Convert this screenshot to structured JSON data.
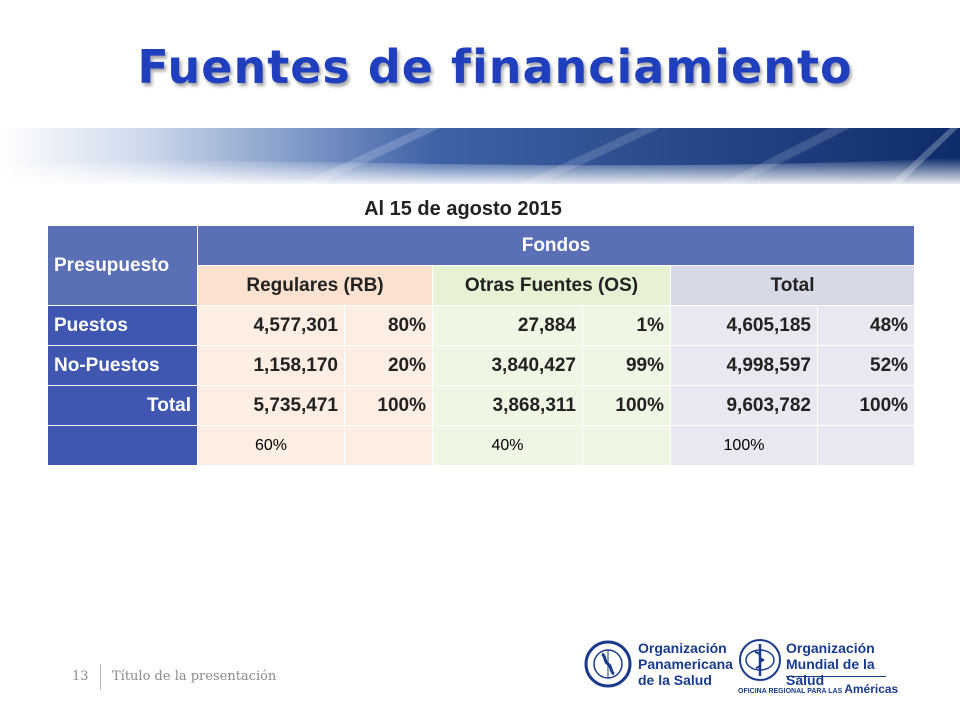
{
  "title": "Fuentes de financiamiento",
  "subtitle": "Al 15 de agosto 2015",
  "table": {
    "presupuesto": "Presupuesto",
    "fondos": "Fondos",
    "col_rb": "Regulares  (RB)",
    "col_os": "Otras Fuentes (OS)",
    "col_total": "Total",
    "rows": [
      {
        "label": "Puestos",
        "rb": "4,577,301",
        "rb_pct": "80%",
        "os": "27,884",
        "os_pct": "1%",
        "total": "4,605,185",
        "total_pct": "48%"
      },
      {
        "label": "No-Puestos",
        "rb": "1,158,170",
        "rb_pct": "20%",
        "os": "3,840,427",
        "os_pct": "99%",
        "total": "4,998,597",
        "total_pct": "52%"
      },
      {
        "label": "Total",
        "rb": "5,735,471",
        "rb_pct": "100%",
        "os": "3,868,311",
        "os_pct": "100%",
        "total": "9,603,782",
        "total_pct": "100%"
      }
    ],
    "share": {
      "rb": "60%",
      "os": "40%",
      "total": "100%"
    }
  },
  "footer": {
    "page_number": "13",
    "text": "Título de la presentación"
  },
  "logos": {
    "ops_line1": "Organización",
    "ops_line2": "Panamericana",
    "ops_line3": "de la Salud",
    "oms_line1": "Organización",
    "oms_line2": "Mundial de la Salud",
    "oms_small": "OFICINA REGIONAL PARA LAS",
    "oms_region": "Américas"
  },
  "colors": {
    "title": "#1f3fbf",
    "header_blue": "#5b6fb7",
    "row_label_blue": "#3f57b0",
    "rb_fill": "#fbe1cf",
    "os_fill": "#e6f2d3",
    "total_fill": "#d7d9e6"
  }
}
